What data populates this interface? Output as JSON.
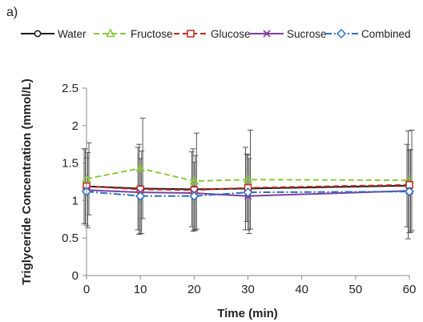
{
  "chart_data": {
    "type": "line",
    "panel_label": "a)",
    "title": "",
    "xlabel": "Time (min)",
    "ylabel": "Triglyceride Concentration (mmol/L)",
    "x": [
      0,
      10,
      20,
      30,
      60
    ],
    "xlim": [
      0,
      60
    ],
    "ylim": [
      0,
      2.5
    ],
    "x_ticks": [
      "0",
      "10",
      "20",
      "30",
      "40",
      "50",
      "60"
    ],
    "y_ticks": [
      "0",
      "0.5",
      "1",
      "1.5",
      "2",
      "2.5"
    ],
    "grid": false,
    "legend_position": "top",
    "series": [
      {
        "name": "Water",
        "color": "#1a1a1a",
        "dash": "solid",
        "marker": "circle",
        "values": [
          1.19,
          1.16,
          1.15,
          1.16,
          1.2
        ],
        "error": [
          0.5,
          0.55,
          0.5,
          0.55,
          0.55
        ]
      },
      {
        "name": "Fructose",
        "color": "#8dc63f",
        "dash": "dashed",
        "marker": "triangle",
        "values": [
          1.29,
          1.43,
          1.26,
          1.28,
          1.27
        ],
        "error": [
          0.48,
          0.67,
          0.64,
          0.66,
          0.67
        ]
      },
      {
        "name": "Glucose",
        "color": "#c0281d",
        "dash": "dashed",
        "marker": "square",
        "values": [
          1.19,
          1.15,
          1.14,
          1.17,
          1.21
        ],
        "error": [
          0.5,
          0.6,
          0.55,
          0.45,
          0.72
        ]
      },
      {
        "name": "Sucrose",
        "color": "#7b3fa0",
        "dash": "solid",
        "marker": "x",
        "values": [
          1.14,
          1.11,
          1.1,
          1.06,
          1.13
        ],
        "error": [
          0.5,
          0.55,
          0.5,
          0.5,
          0.55
        ]
      },
      {
        "name": "Combined",
        "color": "#2f6fc0",
        "dash": "dashdot",
        "marker": "diamond",
        "values": [
          1.12,
          1.06,
          1.06,
          1.11,
          1.12
        ],
        "error": [
          0.45,
          0.5,
          0.45,
          0.5,
          0.55
        ]
      }
    ]
  }
}
